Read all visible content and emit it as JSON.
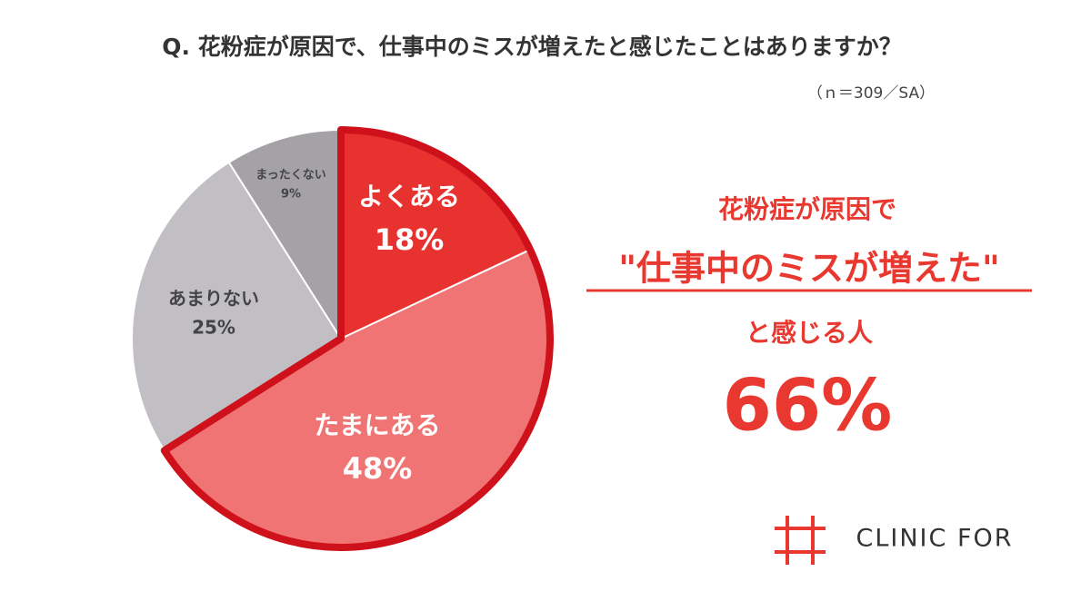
{
  "chart_data": {
    "type": "pie",
    "title": "Q.  花粉症が原因で、仕事中のミスが増えたと感じたことはありますか？",
    "subtitle": "（ｎ＝309／SA）",
    "categories": [
      "よくある",
      "たまにある",
      "あまりない",
      "まったくない"
    ],
    "values": [
      18,
      48,
      25,
      9
    ],
    "value_labels": [
      "18%",
      "48%",
      "25%",
      "9%"
    ],
    "colors": [
      "#e8322f",
      "#f07474",
      "#c1bfc3",
      "#a4a2a6"
    ],
    "annotations": [
      "花粉症が原因で",
      "\"仕事中のミスが増えた\"",
      "と感じる人",
      "66%"
    ]
  },
  "logo": "CLINIC FOR"
}
